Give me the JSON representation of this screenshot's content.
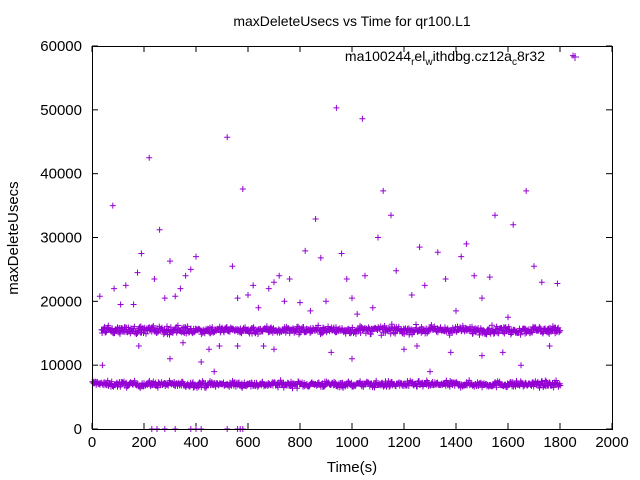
{
  "chart_data": {
    "type": "scatter",
    "title": "maxDeleteUsecs vs Time for qr100.L1",
    "xlabel": "Time(s)",
    "ylabel": "maxDeleteUsecs",
    "xlim": [
      0,
      2000
    ],
    "ylim": [
      0,
      60000
    ],
    "x_ticks": [
      0,
      200,
      400,
      600,
      800,
      1000,
      1200,
      1400,
      1600,
      1800,
      2000
    ],
    "y_ticks": [
      0,
      10000,
      20000,
      30000,
      40000,
      50000,
      60000
    ],
    "grid": false,
    "legend": "top-right",
    "marker": "+",
    "color": "#9400d3",
    "series": [
      {
        "name_parts": [
          {
            "text": "ma100244",
            "shift": "base"
          },
          {
            "text": "r",
            "shift": "sub"
          },
          {
            "text": "el",
            "shift": "base"
          },
          {
            "text": "w",
            "shift": "sub"
          },
          {
            "text": "ithdbg.cz12a",
            "shift": "base"
          },
          {
            "text": "c",
            "shift": "sub"
          },
          {
            "text": "8r32",
            "shift": "base"
          }
        ],
        "bands": [
          {
            "x_range": [
              0,
              35
            ],
            "y_center": 7200,
            "y_spread": 500
          },
          {
            "x_range": [
              40,
              1800
            ],
            "y_center": 7000,
            "y_spread": 700
          },
          {
            "x_range": [
              35,
              1800
            ],
            "y_center": 15500,
            "y_spread": 900
          }
        ],
        "outliers": [
          [
            30,
            20800
          ],
          [
            40,
            10000
          ],
          [
            80,
            35000
          ],
          [
            85,
            22000
          ],
          [
            110,
            19500
          ],
          [
            130,
            22500
          ],
          [
            160,
            19500
          ],
          [
            175,
            24500
          ],
          [
            190,
            27500
          ],
          [
            220,
            42500
          ],
          [
            240,
            23500
          ],
          [
            260,
            31200
          ],
          [
            280,
            20500
          ],
          [
            300,
            26300
          ],
          [
            320,
            20800
          ],
          [
            340,
            22000
          ],
          [
            360,
            24000
          ],
          [
            380,
            25000
          ],
          [
            400,
            27000
          ],
          [
            420,
            10500
          ],
          [
            450,
            12500
          ],
          [
            470,
            9000
          ],
          [
            490,
            13000
          ],
          [
            520,
            45700
          ],
          [
            540,
            25500
          ],
          [
            560,
            20500
          ],
          [
            580,
            37600
          ],
          [
            600,
            21000
          ],
          [
            620,
            22500
          ],
          [
            640,
            19000
          ],
          [
            660,
            13000
          ],
          [
            680,
            22000
          ],
          [
            700,
            23000
          ],
          [
            720,
            24000
          ],
          [
            740,
            20000
          ],
          [
            760,
            23500
          ],
          [
            800,
            19800
          ],
          [
            820,
            27900
          ],
          [
            840,
            18500
          ],
          [
            860,
            32900
          ],
          [
            880,
            26800
          ],
          [
            900,
            20000
          ],
          [
            920,
            12000
          ],
          [
            940,
            50300
          ],
          [
            960,
            27500
          ],
          [
            980,
            23500
          ],
          [
            1000,
            20500
          ],
          [
            1020,
            18000
          ],
          [
            1040,
            48600
          ],
          [
            1050,
            24000
          ],
          [
            1080,
            19000
          ],
          [
            1100,
            30000
          ],
          [
            1120,
            37300
          ],
          [
            1150,
            33500
          ],
          [
            1170,
            24800
          ],
          [
            1200,
            12500
          ],
          [
            1230,
            21000
          ],
          [
            1260,
            28500
          ],
          [
            1280,
            22500
          ],
          [
            1300,
            9000
          ],
          [
            1330,
            27700
          ],
          [
            1360,
            23500
          ],
          [
            1380,
            12000
          ],
          [
            1400,
            18500
          ],
          [
            1420,
            27000
          ],
          [
            1440,
            29000
          ],
          [
            1470,
            24000
          ],
          [
            1500,
            20500
          ],
          [
            1530,
            23800
          ],
          [
            1550,
            33500
          ],
          [
            1580,
            12000
          ],
          [
            1600,
            17500
          ],
          [
            1620,
            32000
          ],
          [
            1650,
            10000
          ],
          [
            1670,
            37300
          ],
          [
            1700,
            25500
          ],
          [
            1730,
            23000
          ],
          [
            1760,
            13000
          ],
          [
            1790,
            22800
          ],
          [
            1850,
            58500
          ],
          [
            180,
            13000
          ],
          [
            300,
            11000
          ],
          [
            350,
            13500
          ],
          [
            560,
            13000
          ],
          [
            700,
            12500
          ],
          [
            1000,
            11000
          ],
          [
            1250,
            13000
          ],
          [
            1500,
            11500
          ]
        ],
        "zeros": [
          230,
          250,
          280,
          320,
          380,
          400,
          420,
          520,
          560,
          570,
          580
        ]
      }
    ]
  }
}
